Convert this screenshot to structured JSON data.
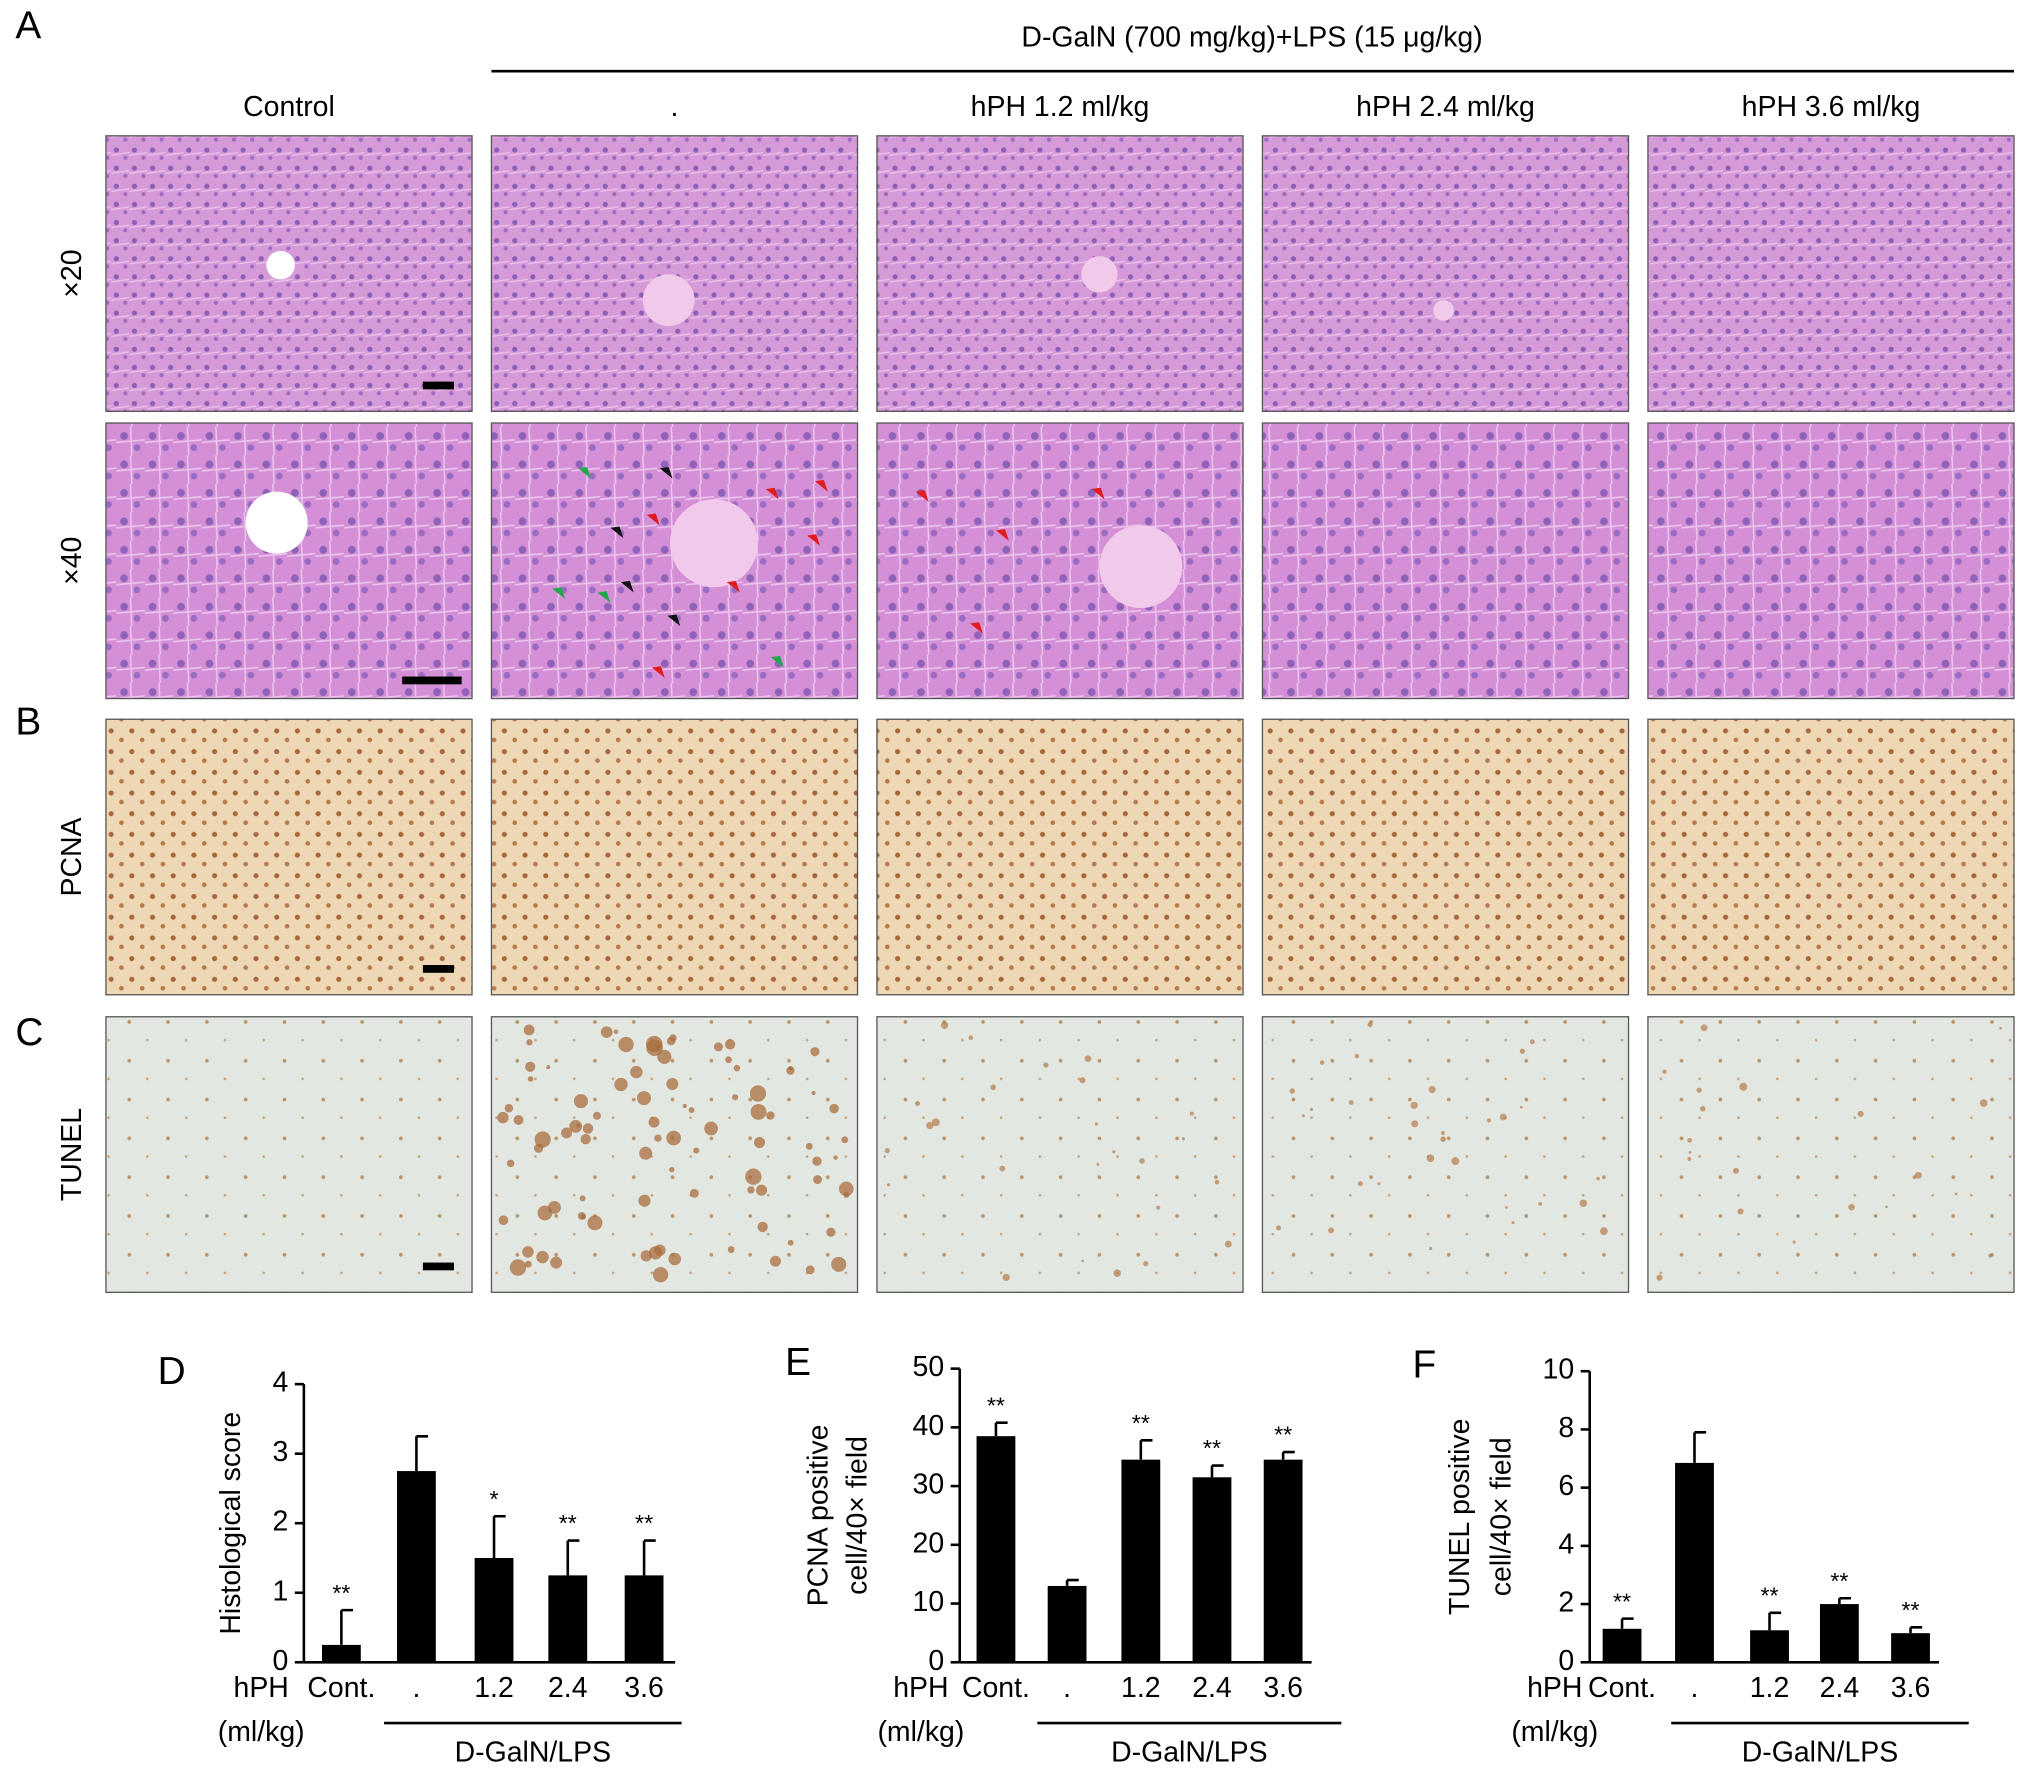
{
  "figure": {
    "letters": [
      "A",
      "B",
      "C"
    ],
    "header": "D-GalN (700 mg/kg)+LPS (15 μg/kg)",
    "columns": [
      "Control",
      ".",
      "hPH 1.2 ml/kg",
      "hPH 2.4 ml/kg",
      "hPH 3.6 ml/kg"
    ],
    "row_labels": [
      "×20",
      "×40",
      "PCNA",
      "TUNEL"
    ]
  },
  "chart_data": [
    {
      "type": "bar",
      "panel": "D",
      "ylabel": [
        "Histological score"
      ],
      "x_prefix": "hPH",
      "x_unit": "(ml/kg)",
      "group_label": "D-GalN/LPS",
      "categories": [
        "Cont.",
        ".",
        "1.2",
        "2.4",
        "3.6"
      ],
      "values": [
        0.25,
        2.75,
        1.5,
        1.25,
        1.25
      ],
      "errors": [
        0.5,
        0.5,
        0.6,
        0.5,
        0.5
      ],
      "significance": [
        "**",
        null,
        "*",
        "**",
        "**"
      ],
      "color": "#000000",
      "ylim": [
        0,
        4
      ],
      "yticks": [
        0,
        1,
        2,
        3,
        4
      ]
    },
    {
      "type": "bar",
      "panel": "E",
      "ylabel": [
        "PCNA positive",
        "cell/40× field"
      ],
      "x_prefix": "hPH",
      "x_unit": "(ml/kg)",
      "group_label": "D-GalN/LPS",
      "categories": [
        "Cont.",
        ".",
        "1.2",
        "2.4",
        "3.6"
      ],
      "values": [
        38.5,
        13,
        34.5,
        31.5,
        34.5
      ],
      "errors": [
        2.3,
        1,
        3.3,
        2,
        1.3
      ],
      "significance": [
        "**",
        null,
        "**",
        "**",
        "**"
      ],
      "color": "#000000",
      "ylim": [
        0,
        50
      ],
      "yticks": [
        0,
        10,
        20,
        30,
        40,
        50
      ]
    },
    {
      "type": "bar",
      "panel": "F",
      "ylabel": [
        "TUNEL positive",
        "cell/40× field"
      ],
      "x_prefix": "hPH",
      "x_unit": "(ml/kg)",
      "group_label": "D-GalN/LPS",
      "categories": [
        "Cont.",
        ".",
        "1.2",
        "2.4",
        "3.6"
      ],
      "values": [
        1.15,
        6.85,
        1.1,
        2.0,
        1.0
      ],
      "errors": [
        0.35,
        1.05,
        0.6,
        0.2,
        0.2
      ],
      "significance": [
        "**",
        null,
        "**",
        "**",
        "**"
      ],
      "color": "#000000",
      "ylim": [
        0,
        10
      ],
      "yticks": [
        0,
        2,
        4,
        6,
        8,
        10
      ]
    }
  ]
}
